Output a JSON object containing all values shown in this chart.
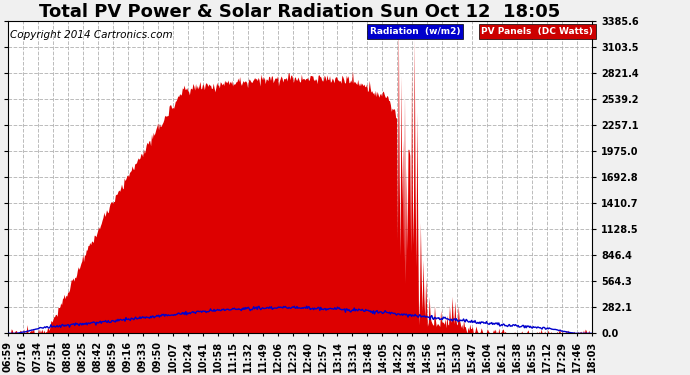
{
  "title": "Total PV Power & Solar Radiation Sun Oct 12  18:05",
  "copyright": "Copyright 2014 Cartronics.com",
  "yticks": [
    0.0,
    282.1,
    564.3,
    846.4,
    1128.5,
    1410.7,
    1692.8,
    1975.0,
    2257.1,
    2539.2,
    2821.4,
    3103.5,
    3385.6
  ],
  "ymax": 3385.6,
  "legend_labels": [
    "Radiation  (w/m2)",
    "PV Panels  (DC Watts)"
  ],
  "legend_bg_colors": [
    "#0000cc",
    "#cc0000"
  ],
  "legend_text_colors": [
    "white",
    "white"
  ],
  "xtick_labels": [
    "06:59",
    "07:16",
    "07:34",
    "07:51",
    "08:08",
    "08:25",
    "08:42",
    "08:59",
    "09:16",
    "09:33",
    "09:50",
    "10:07",
    "10:24",
    "10:41",
    "10:58",
    "11:15",
    "11:32",
    "11:49",
    "12:06",
    "12:23",
    "12:40",
    "12:57",
    "13:14",
    "13:31",
    "13:48",
    "14:05",
    "14:22",
    "14:39",
    "14:56",
    "15:13",
    "15:30",
    "15:47",
    "16:04",
    "16:21",
    "16:38",
    "16:55",
    "17:12",
    "17:29",
    "17:46",
    "18:03"
  ],
  "bg_color": "#f0f0f0",
  "plot_bg_color": "#ffffff",
  "grid_color": "#aaaaaa",
  "pv_color": "#dd0000",
  "radiation_color": "#0000cc",
  "title_fontsize": 13,
  "tick_fontsize": 7,
  "copyright_fontsize": 7.5
}
